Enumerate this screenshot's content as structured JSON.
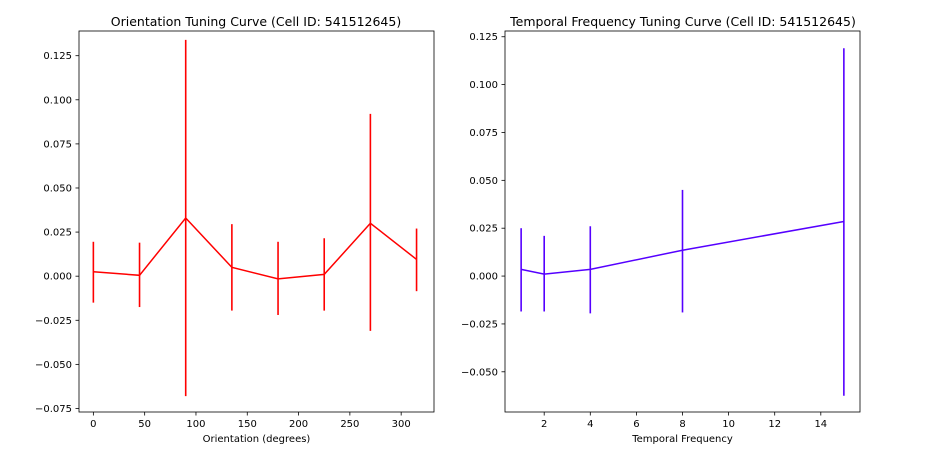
{
  "chart_data": [
    {
      "type": "line",
      "title": "Orientation Tuning Curve (Cell ID: 541512645)",
      "xlabel": "Orientation (degrees)",
      "ylabel": "",
      "color": "#ff0000",
      "xlim": [
        -14,
        332
      ],
      "ylim": [
        -0.077,
        0.139
      ],
      "x_ticks": [
        0,
        50,
        100,
        150,
        200,
        250,
        300
      ],
      "y_ticks": [
        -0.075,
        -0.05,
        -0.025,
        0.0,
        0.025,
        0.05,
        0.075,
        0.1,
        0.125
      ],
      "x_tick_labels": [
        "0",
        "50",
        "100",
        "150",
        "200",
        "250",
        "300"
      ],
      "y_tick_labels": [
        "−0.075",
        "−0.050",
        "−0.025",
        "0.000",
        "0.025",
        "0.050",
        "0.075",
        "0.100",
        "0.125"
      ],
      "x": [
        0,
        45,
        90,
        135,
        180,
        225,
        270,
        315
      ],
      "y": [
        0.0025,
        0.0005,
        0.033,
        0.005,
        -0.0015,
        0.001,
        0.03,
        0.0095
      ],
      "y_err_low": [
        -0.015,
        -0.0175,
        -0.068,
        -0.0195,
        -0.022,
        -0.0195,
        -0.031,
        -0.0085
      ],
      "y_err_high": [
        0.0195,
        0.019,
        0.134,
        0.0295,
        0.0195,
        0.0215,
        0.092,
        0.027
      ]
    },
    {
      "type": "line",
      "title": "Temporal Frequency Tuning Curve (Cell ID: 541512645)",
      "xlabel": "Temporal Frequency",
      "ylabel": "",
      "color": "#5500ff",
      "xlim": [
        0.3,
        15.7
      ],
      "ylim": [
        -0.071,
        0.128
      ],
      "x_ticks": [
        2,
        4,
        6,
        8,
        10,
        12,
        14
      ],
      "y_ticks": [
        -0.05,
        -0.025,
        0.0,
        0.025,
        0.05,
        0.075,
        0.1,
        0.125
      ],
      "x_tick_labels": [
        "2",
        "4",
        "6",
        "8",
        "10",
        "12",
        "14"
      ],
      "y_tick_labels": [
        "−0.050",
        "−0.025",
        "0.000",
        "0.025",
        "0.050",
        "0.075",
        "0.100",
        "0.125"
      ],
      "x": [
        1,
        2,
        4,
        8,
        15
      ],
      "y": [
        0.0035,
        0.001,
        0.0035,
        0.0135,
        0.0285
      ],
      "y_err_low": [
        -0.0185,
        -0.0185,
        -0.0195,
        -0.019,
        -0.0625
      ],
      "y_err_high": [
        0.025,
        0.021,
        0.026,
        0.045,
        0.119
      ]
    }
  ]
}
